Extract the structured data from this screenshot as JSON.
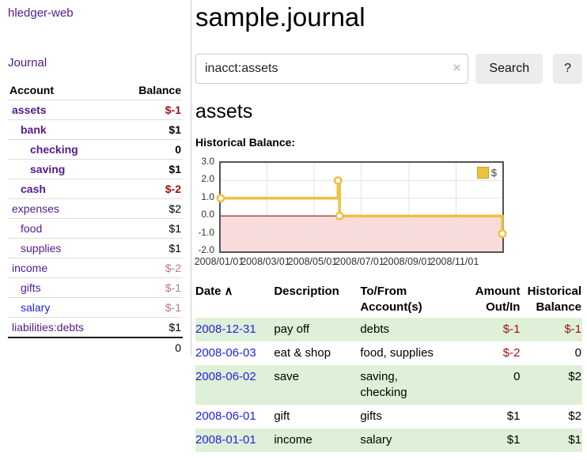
{
  "app": {
    "brand": "hledger-web",
    "nav": {
      "journal": "Journal"
    }
  },
  "sidebar": {
    "header": {
      "account": "Account",
      "balance": "Balance"
    },
    "accounts": [
      {
        "name": "assets",
        "level": 1,
        "bold": true,
        "link": "purple",
        "balance": "$-1",
        "balance_class": "neg-bold"
      },
      {
        "name": "bank",
        "level": 2,
        "bold": true,
        "link": "purple",
        "balance": "$1",
        "balance_class": "bold"
      },
      {
        "name": "checking",
        "level": 3,
        "bold": true,
        "link": "purple",
        "balance": "0",
        "balance_class": "bold"
      },
      {
        "name": "saving",
        "level": 3,
        "bold": true,
        "link": "purple",
        "balance": "$1",
        "balance_class": "bold"
      },
      {
        "name": "cash",
        "level": 2,
        "bold": true,
        "link": "purple",
        "balance": "$-2",
        "balance_class": "neg-bold"
      },
      {
        "name": "expenses",
        "level": 1,
        "bold": false,
        "link": "purple",
        "balance": "$2",
        "balance_class": "plain"
      },
      {
        "name": "food",
        "level": 2,
        "bold": false,
        "link": "purple",
        "balance": "$1",
        "balance_class": "plain"
      },
      {
        "name": "supplies",
        "level": 2,
        "bold": false,
        "link": "purple",
        "balance": "$1",
        "balance_class": "plain"
      },
      {
        "name": "income",
        "level": 1,
        "bold": false,
        "link": "purple",
        "balance": "$-2",
        "balance_class": "neg"
      },
      {
        "name": "gifts",
        "level": 2,
        "bold": false,
        "link": "purple",
        "balance": "$-1",
        "balance_class": "neg"
      },
      {
        "name": "salary",
        "level": 2,
        "bold": false,
        "link": "blue",
        "balance": "$-1",
        "balance_class": "neg"
      },
      {
        "name": "liabilities:debts",
        "level": 1,
        "bold": false,
        "link": "purple",
        "balance": "$1",
        "balance_class": "plain"
      }
    ],
    "total": "0"
  },
  "main": {
    "title": "sample.journal",
    "search": {
      "value": "inacct:assets",
      "clear_icon": "×",
      "button_label": "Search",
      "help_label": "?"
    },
    "account_heading": "assets",
    "section_label": "Historical Balance:"
  },
  "chart_data": {
    "type": "line",
    "step": true,
    "title": "Historical Balance:",
    "series": [
      {
        "name": "$",
        "color": "#edc240",
        "points": [
          [
            "2008/01/01",
            1.0
          ],
          [
            "2008/06/01",
            2.0
          ],
          [
            "2008/06/03",
            0.0
          ],
          [
            "2008/12/31",
            -1.0
          ]
        ]
      }
    ],
    "xrange": [
      "2008/01/01",
      "2008/12/31"
    ],
    "ylim": [
      -2.0,
      3.0
    ],
    "yticks": [
      3.0,
      2.0,
      1.0,
      0.0,
      -1.0,
      -2.0
    ],
    "xticks": [
      "2008/01/01",
      "2008/03/01",
      "2008/05/01",
      "2008/07/01",
      "2008/09/01",
      "2008/11/01"
    ],
    "legend": {
      "label": "$",
      "position": "top-right"
    },
    "grid": true,
    "grid_color": "#e3e3e3",
    "zero_line_color": "#8b1a1a",
    "negative_region_color": "#fadbdb"
  },
  "register": {
    "sort_icon": "∧",
    "headers": [
      "Date",
      "Description",
      "To/From\nAccount(s)",
      "Amount\nOut/In",
      "Historical\nBalance"
    ],
    "rows": [
      {
        "date": "2008-12-31",
        "description": "pay off",
        "accounts": "debts",
        "amount": "$-1",
        "amount_neg": true,
        "balance": "$-1",
        "balance_neg": true
      },
      {
        "date": "2008-06-03",
        "description": "eat & shop",
        "accounts": "food, supplies",
        "amount": "$-2",
        "amount_neg": true,
        "balance": "0",
        "balance_neg": false
      },
      {
        "date": "2008-06-02",
        "description": "save",
        "accounts": "saving,\nchecking",
        "amount": "0",
        "amount_neg": false,
        "balance": "$2",
        "balance_neg": false
      },
      {
        "date": "2008-06-01",
        "description": "gift",
        "accounts": "gifts",
        "amount": "$1",
        "amount_neg": false,
        "balance": "$2",
        "balance_neg": false
      },
      {
        "date": "2008-01-01",
        "description": "income",
        "accounts": "salary",
        "amount": "$1",
        "amount_neg": false,
        "balance": "$1",
        "balance_neg": false
      }
    ]
  }
}
